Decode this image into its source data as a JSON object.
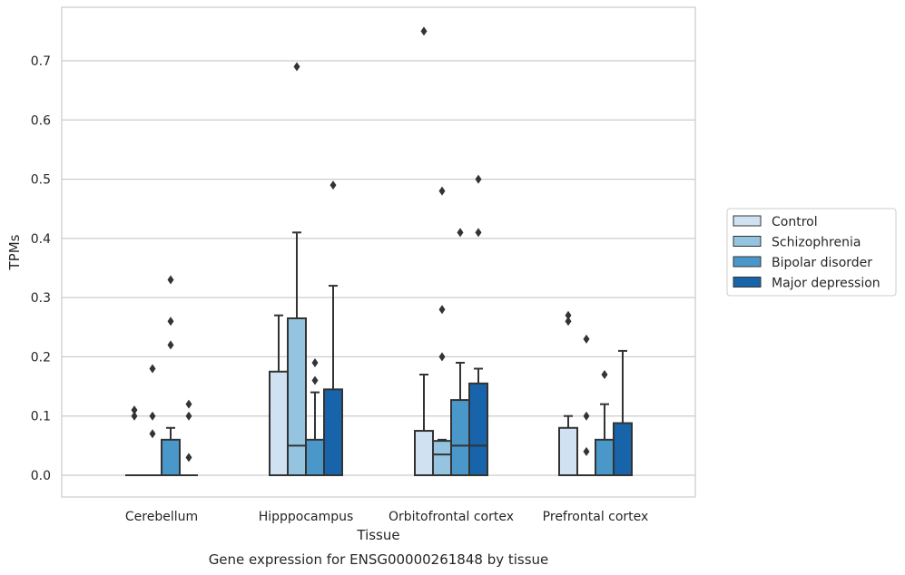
{
  "caption": "Gene expression for ENSG00000261848 by tissue",
  "chart_data": {
    "type": "box",
    "xlabel": "Tissue",
    "ylabel": "TPMs",
    "ylim": [
      -0.037,
      0.79
    ],
    "yticks": [
      "0.0",
      "0.1",
      "0.2",
      "0.3",
      "0.4",
      "0.5",
      "0.6",
      "0.7"
    ],
    "grid": "horizontal",
    "legend_position": "right",
    "categories": [
      "Cerebellum",
      "Hipppocampus",
      "Orbitofrontal cortex",
      "Prefrontal cortex"
    ],
    "series": [
      {
        "name": "Control",
        "color": "#d0e1f2",
        "boxes": [
          {
            "q1": 0,
            "median": 0,
            "q3": 0,
            "whisker_low": 0,
            "whisker_high": 0,
            "outliers": [
              0.1,
              0.11
            ]
          },
          {
            "q1": 0,
            "median": 0,
            "q3": 0.175,
            "whisker_low": 0,
            "whisker_high": 0.27,
            "outliers": []
          },
          {
            "q1": 0,
            "median": 0,
            "q3": 0.075,
            "whisker_low": 0,
            "whisker_high": 0.17,
            "outliers": [
              0.75
            ]
          },
          {
            "q1": 0,
            "median": 0,
            "q3": 0.08,
            "whisker_low": 0,
            "whisker_high": 0.1,
            "outliers": [
              0.26,
              0.27
            ]
          }
        ]
      },
      {
        "name": "Schizophrenia",
        "color": "#94c4df",
        "boxes": [
          {
            "q1": 0,
            "median": 0,
            "q3": 0,
            "whisker_low": 0,
            "whisker_high": 0,
            "outliers": [
              0.07,
              0.1,
              0.18
            ]
          },
          {
            "q1": 0,
            "median": 0.05,
            "q3": 0.265,
            "whisker_low": 0,
            "whisker_high": 0.41,
            "outliers": [
              0.69
            ]
          },
          {
            "q1": 0,
            "median": 0.035,
            "q3": 0.058,
            "whisker_low": 0,
            "whisker_high": 0.06,
            "outliers": [
              0.2,
              0.28,
              0.48
            ]
          },
          {
            "q1": 0,
            "median": 0,
            "q3": 0,
            "whisker_low": 0,
            "whisker_high": 0,
            "outliers": [
              0.04,
              0.1,
              0.23
            ]
          }
        ]
      },
      {
        "name": "Bipolar disorder",
        "color": "#4a98c9",
        "boxes": [
          {
            "q1": 0,
            "median": 0,
            "q3": 0.06,
            "whisker_low": 0,
            "whisker_high": 0.08,
            "outliers": [
              0.22,
              0.26,
              0.33
            ]
          },
          {
            "q1": 0,
            "median": 0,
            "q3": 0.06,
            "whisker_low": 0,
            "whisker_high": 0.14,
            "outliers": [
              0.16,
              0.19
            ]
          },
          {
            "q1": 0,
            "median": 0.05,
            "q3": 0.127,
            "whisker_low": 0,
            "whisker_high": 0.19,
            "outliers": [
              0.41
            ]
          },
          {
            "q1": 0,
            "median": 0,
            "q3": 0.06,
            "whisker_low": 0,
            "whisker_high": 0.12,
            "outliers": [
              0.17
            ]
          }
        ]
      },
      {
        "name": "Major depression",
        "color": "#1764ab",
        "boxes": [
          {
            "q1": 0,
            "median": 0,
            "q3": 0,
            "whisker_low": 0,
            "whisker_high": 0,
            "outliers": [
              0.03,
              0.1,
              0.12
            ]
          },
          {
            "q1": 0,
            "median": 0,
            "q3": 0.145,
            "whisker_low": 0,
            "whisker_high": 0.32,
            "outliers": [
              0.49
            ]
          },
          {
            "q1": 0,
            "median": 0.05,
            "q3": 0.155,
            "whisker_low": 0,
            "whisker_high": 0.18,
            "outliers": [
              0.41,
              0.5
            ]
          },
          {
            "q1": 0,
            "median": 0,
            "q3": 0.088,
            "whisker_low": 0,
            "whisker_high": 0.21,
            "outliers": []
          }
        ]
      }
    ]
  }
}
